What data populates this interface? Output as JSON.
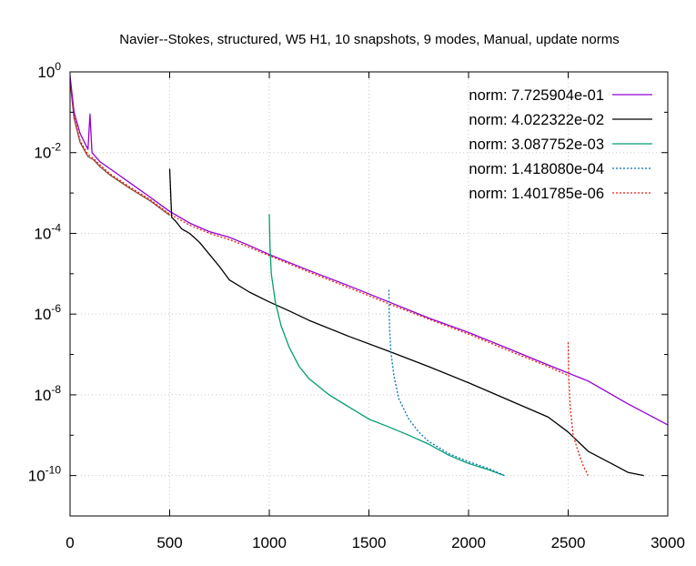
{
  "chart_data": {
    "type": "line",
    "title": "Navier--Stokes, structured, W5 H1, 10 snapshots, 9 modes, Manual, update norms",
    "xlabel": "",
    "ylabel": "",
    "xlim": [
      0,
      3000
    ],
    "ylim": [
      1e-11,
      1
    ],
    "yscale": "log",
    "grid": true,
    "legend_position": "top-right",
    "x_ticks": [
      "0",
      "500",
      "1000",
      "1500",
      "2000",
      "2500",
      "3000"
    ],
    "y_ticks": [
      {
        "base": "10",
        "exp": "0"
      },
      {
        "base": "10",
        "exp": "-2"
      },
      {
        "base": "10",
        "exp": "-4"
      },
      {
        "base": "10",
        "exp": "-6"
      },
      {
        "base": "10",
        "exp": "-8"
      },
      {
        "base": "10",
        "exp": "-10"
      }
    ],
    "series": [
      {
        "name": "norm: 7.725904e-01",
        "color": "#9400d3",
        "dash": "solid",
        "x": [
          0,
          20,
          50,
          90,
          100,
          110,
          150,
          200,
          300,
          400,
          500,
          600,
          700,
          800,
          900,
          1000,
          1200,
          1400,
          1600,
          1800,
          2000,
          2200,
          2400,
          2600,
          2800,
          3000
        ],
        "y": [
          0.8,
          0.1,
          0.03,
          0.012,
          0.09,
          0.01,
          0.006,
          0.004,
          0.0018,
          0.0008,
          0.00035,
          0.00018,
          0.00011,
          8e-05,
          5e-05,
          3e-05,
          1.2e-05,
          5e-06,
          2e-06,
          8e-07,
          3.5e-07,
          1.4e-07,
          5.5e-08,
          2.2e-08,
          6e-09,
          1.8e-09
        ]
      },
      {
        "name": "norm: 4.022322e-02",
        "color": "#000000",
        "dash": "solid",
        "x": [
          500,
          510,
          530,
          560,
          600,
          650,
          700,
          750,
          800,
          900,
          1000,
          1100,
          1200,
          1400,
          1600,
          1800,
          2000,
          2200,
          2400,
          2500,
          2600,
          2700,
          2800,
          2880
        ],
        "y": [
          0.004,
          0.00025,
          0.0002,
          0.00013,
          0.0001,
          6e-05,
          3e-05,
          1.5e-05,
          7e-06,
          3.5e-06,
          2e-06,
          1.2e-06,
          7e-07,
          2.8e-07,
          1.2e-07,
          5e-08,
          2e-08,
          7.5e-09,
          2.8e-09,
          1.2e-09,
          4e-10,
          2.2e-10,
          1.2e-10,
          1e-10
        ]
      },
      {
        "name": "norm: 3.087752e-03",
        "color": "#009e73",
        "dash": "solid",
        "x": [
          1000,
          1003,
          1010,
          1030,
          1060,
          1100,
          1150,
          1200,
          1300,
          1400,
          1500,
          1600,
          1700,
          1800,
          1900,
          2000,
          2100,
          2180
        ],
        "y": [
          0.0003,
          5e-05,
          1e-05,
          2e-06,
          5e-07,
          1.5e-07,
          5e-08,
          2.5e-08,
          1e-08,
          5e-09,
          2.5e-09,
          1.6e-09,
          1e-09,
          6e-10,
          3.2e-10,
          2e-10,
          1.4e-10,
          1e-10
        ]
      },
      {
        "name": "norm: 1.418080e-04",
        "color": "#0072b2",
        "dash": "dotted",
        "x": [
          1600,
          1603,
          1610,
          1625,
          1650,
          1700,
          1750,
          1800,
          1900,
          2000,
          2100,
          2180
        ],
        "y": [
          4e-06,
          5e-07,
          1.2e-07,
          3e-08,
          8e-09,
          2.5e-09,
          1.2e-09,
          7e-10,
          3.5e-10,
          2.2e-10,
          1.5e-10,
          1e-10
        ]
      },
      {
        "name": "norm: 1.401785e-06",
        "color": "#e51e10",
        "dash": "dotted",
        "x": [
          2500,
          2503,
          2510,
          2525,
          2550,
          2575,
          2600
        ],
        "y": [
          2e-07,
          2.5e-08,
          5e-09,
          1e-09,
          4e-10,
          1.8e-10,
          1e-10
        ]
      },
      {
        "name": "",
        "color": "#e51e10",
        "dash": "dotted",
        "x": [
          0,
          20,
          50,
          90,
          120,
          150,
          200,
          300,
          400,
          500,
          600,
          700,
          800,
          900,
          1000,
          1200,
          1400,
          1600,
          1800,
          2000,
          2200,
          2400,
          2500
        ],
        "y": [
          0.7,
          0.08,
          0.02,
          0.009,
          0.007,
          0.005,
          0.003,
          0.0014,
          0.0007,
          0.0003,
          0.00016,
          0.0001,
          7e-05,
          4.5e-05,
          2.8e-05,
          1.1e-05,
          4.5e-06,
          1.8e-06,
          7.5e-07,
          3.2e-07,
          1.25e-07,
          5e-08,
          3e-08
        ]
      },
      {
        "name": "",
        "color": "#8c4a2f",
        "dash": "solid",
        "x": [
          0,
          20,
          50,
          90,
          120,
          150,
          200,
          300,
          400,
          500
        ],
        "y": [
          0.6,
          0.07,
          0.018,
          0.008,
          0.0065,
          0.0045,
          0.0028,
          0.0013,
          0.00065,
          0.00028
        ]
      }
    ]
  }
}
